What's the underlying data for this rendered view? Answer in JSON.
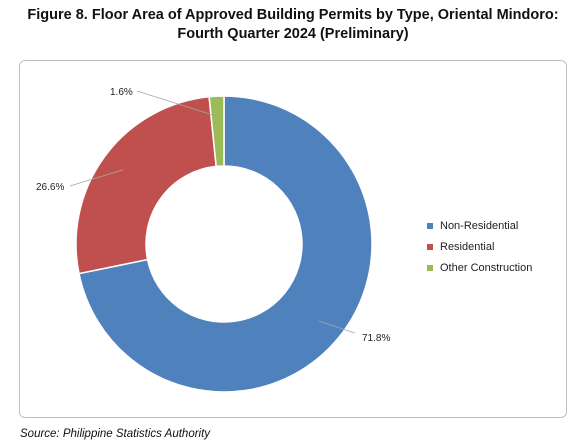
{
  "title": {
    "line1": "Figure 8. Floor Area of Approved Building Permits by Type, Oriental Mindoro:",
    "line2": "Fourth Quarter 2024 (Preliminary)"
  },
  "source": "Source: Philippine Statistics Authority",
  "chart_data": {
    "type": "pie",
    "donut": true,
    "categories": [
      "Non-Residential",
      "Residential",
      "Other Construction"
    ],
    "values": [
      71.8,
      26.6,
      1.6
    ],
    "data_labels": [
      "71.8%",
      "26.6%",
      "1.6%"
    ],
    "colors": [
      "#4f81bd",
      "#c0504d",
      "#9bbb59"
    ],
    "legend_position": "right"
  }
}
